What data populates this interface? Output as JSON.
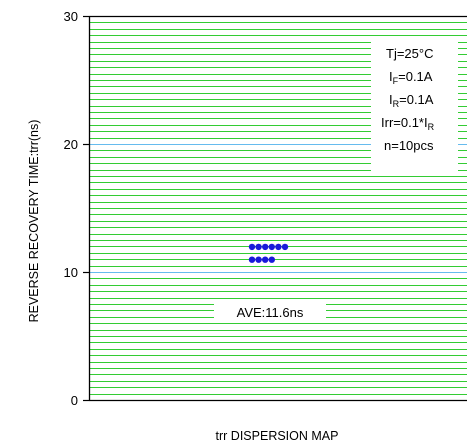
{
  "chart_data": {
    "type": "scatter",
    "title": "",
    "xlabel": "trr DISPERSION MAP",
    "ylabel": "REVERSE RECOVERY TIME:trr(ns)",
    "ylim": [
      0,
      30
    ],
    "yticks": [
      "0",
      "10",
      "20",
      "30"
    ],
    "major_grid_step": 10,
    "minor_grid_step": 0.5,
    "grid": true,
    "points": [
      {
        "y": 12.0
      },
      {
        "y": 12.0
      },
      {
        "y": 12.0
      },
      {
        "y": 12.0
      },
      {
        "y": 12.0
      },
      {
        "y": 12.0
      },
      {
        "y": 11.0
      },
      {
        "y": 11.0
      },
      {
        "y": 11.0
      },
      {
        "y": 11.0
      }
    ],
    "conditions": {
      "tj": "Tj=25°C",
      "if_main": "I",
      "if_sub": "F",
      "if_val": "=0.1A",
      "ir_main": "I",
      "ir_sub": "R",
      "ir_val": "=0.1A",
      "irr_main": "Irr=0.1*I",
      "irr_sub": "R",
      "n": "n=10pcs"
    },
    "average_label": "AVE:11.6ns",
    "colors": {
      "minor_grid": "#33cc33",
      "major_grid": "#66bbee",
      "points": "#1a1adb",
      "frame": "#000000"
    }
  }
}
